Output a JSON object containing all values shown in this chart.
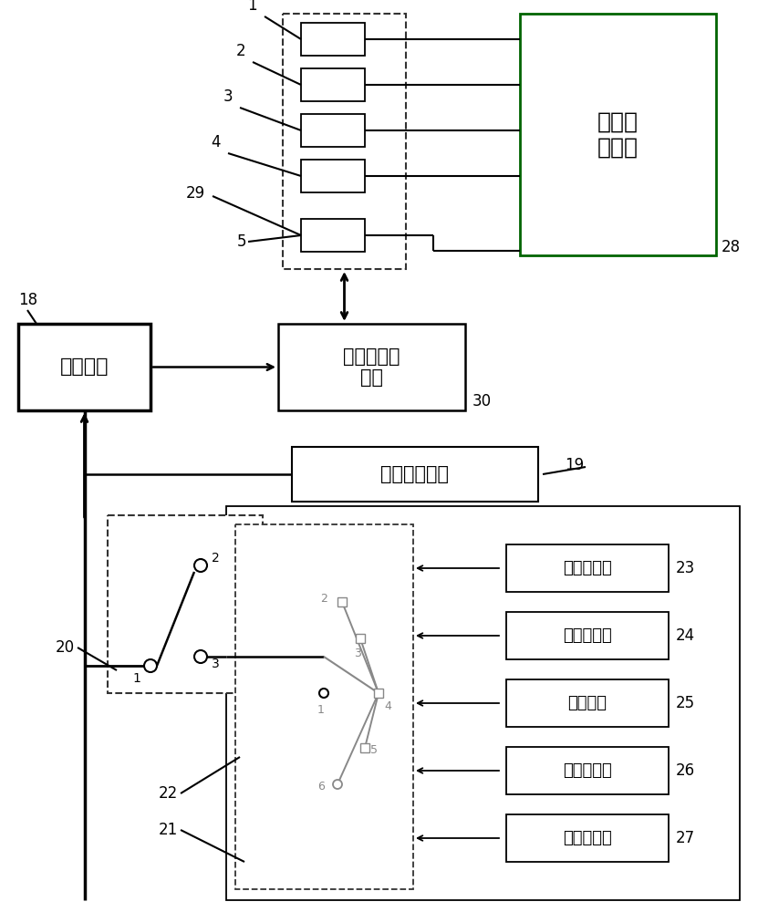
{
  "bg": "#ffffff",
  "lc": "#000000",
  "gc": "#006400",
  "gray": "#888888",
  "dark": "#333333",
  "sensor_labels": [
    "1",
    "2",
    "3",
    "4",
    "5"
  ],
  "gear_labels": [
    "开位测试挡",
    "关位测试挡",
    "初始位挡",
    "突开测试挡",
    "突关测试挡"
  ],
  "gear_nums": [
    "23",
    "24",
    "25",
    "26",
    "27"
  ],
  "text_executor": "执行机构",
  "text_turbine": "汽轮机发机\n电组",
  "text_load": "负荷指令模块",
  "text_data": "数据采\n集模块",
  "num_18": "18",
  "num_19": "19",
  "num_20": "20",
  "num_21": "21",
  "num_22": "22",
  "num_28": "28",
  "num_29": "29",
  "num_30": "30"
}
